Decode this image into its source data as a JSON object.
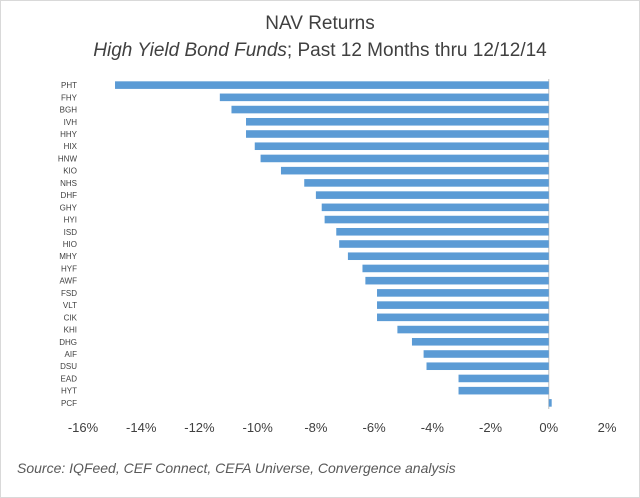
{
  "chart_data": {
    "type": "bar",
    "orientation": "horizontal",
    "title": "NAV Returns",
    "subtitle_italic": "High Yield Bond Funds",
    "subtitle_rest": "; Past 12 Months thru 12/12/14",
    "categories": [
      "PHT",
      "FHY",
      "BGH",
      "IVH",
      "HHY",
      "HIX",
      "HNW",
      "KIO",
      "NHS",
      "DHF",
      "GHY",
      "HYI",
      "ISD",
      "HIO",
      "MHY",
      "HYF",
      "AWF",
      "FSD",
      "VLT",
      "CIK",
      "KHI",
      "DHG",
      "AIF",
      "DSU",
      "EAD",
      "HYT",
      "PCF"
    ],
    "values": [
      -14.9,
      -11.3,
      -10.9,
      -10.4,
      -10.4,
      -10.1,
      -9.9,
      -9.2,
      -8.4,
      -8.0,
      -7.8,
      -7.7,
      -7.3,
      -7.2,
      -6.9,
      -6.4,
      -6.3,
      -5.9,
      -5.9,
      -5.9,
      -5.2,
      -4.7,
      -4.3,
      -4.2,
      -3.1,
      -3.1,
      0.1
    ],
    "xlim": [
      -16,
      2
    ],
    "xticks": [
      -16,
      -14,
      -12,
      -10,
      -8,
      -6,
      -4,
      -2,
      0,
      2
    ],
    "xtick_labels": [
      "-16%",
      "-14%",
      "-12%",
      "-10%",
      "-8%",
      "-6%",
      "-4%",
      "-2%",
      "0%",
      "2%"
    ],
    "bar_color": "#5b9bd5",
    "grid": false,
    "legend": "none"
  },
  "source_note": "Source:  IQFeed, CEF Connect, CEFA Universe, Convergence analysis"
}
